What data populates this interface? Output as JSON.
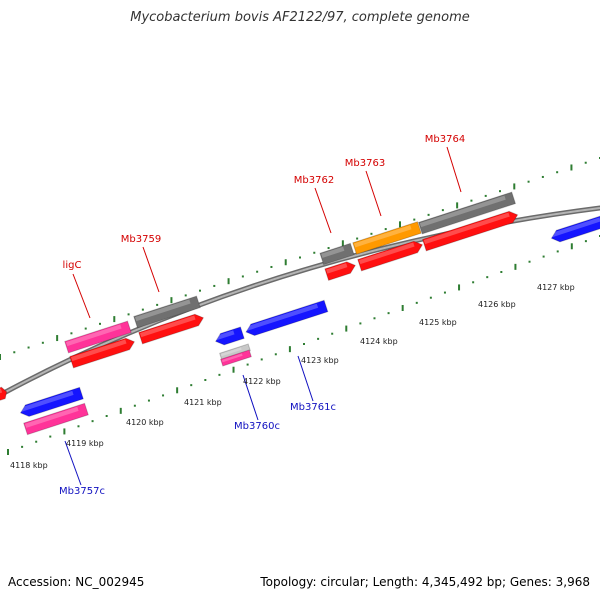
{
  "title": "Mycobacterium bovis AF2122/97, complete genome",
  "footer": {
    "accession": "Accession: NC_002945",
    "topology": "Topology: circular; Length: 4,345,492 bp; Genes: 3,968"
  },
  "colors": {
    "backbone": "#8a8a8a",
    "forward_tick": "#2e7d32",
    "reverse_tick": "#2e7d32",
    "forward_label": "#d40000",
    "reverse_label": "#1010c0",
    "forward_gene": "#ff1010",
    "reverse_gene": "#1515ff",
    "pseudogene": "#ff3399",
    "unknown_gene": "#707070",
    "orange_gene": "#ff9900",
    "small_gray": "#c8c8c8"
  },
  "coordinate_labels": [
    "4118 kbp",
    "4119 kbp",
    "4120 kbp",
    "4121 kbp",
    "4122 kbp",
    "4123 kbp",
    "4124 kbp",
    "4125 kbp",
    "4126 kbp",
    "4127 kbp"
  ],
  "forward_gene_labels": [
    "ligC",
    "Mb3759",
    "Mb3762",
    "Mb3763",
    "Mb3764"
  ],
  "reverse_gene_labels": [
    "Mb3757c",
    "Mb3760c",
    "Mb3761c"
  ]
}
